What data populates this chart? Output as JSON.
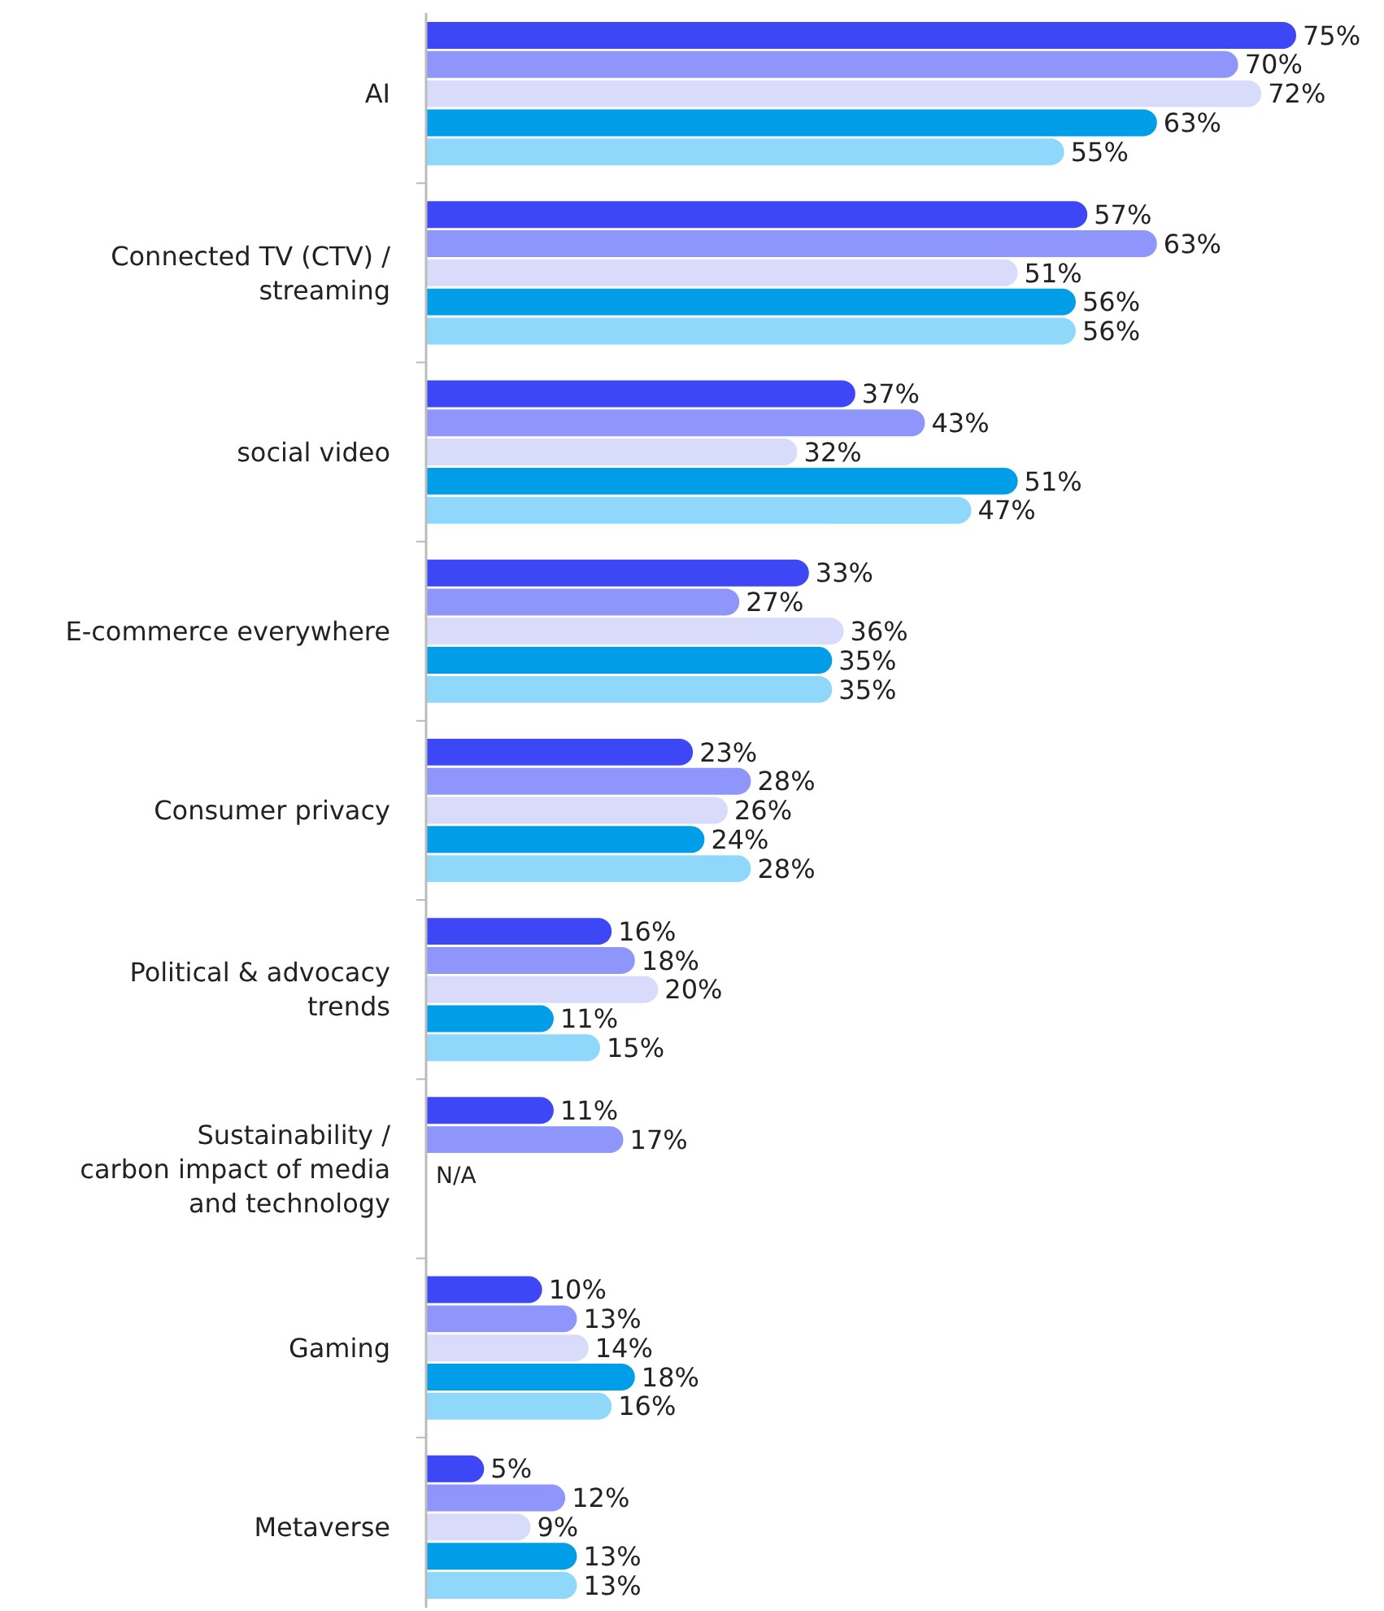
{
  "chart_data": {
    "type": "bar",
    "orientation": "horizontal",
    "categories": [
      "AI",
      "Connected TV (CTV) / streaming",
      "social video",
      "E-commerce everywhere",
      "Consumer privacy",
      "Political & advocacy trends",
      "Sustainability / carbon impact of media and technology",
      "Gaming",
      "Metaverse"
    ],
    "series": [
      {
        "color": "#3d47f5",
        "values": [
          75,
          57,
          37,
          33,
          23,
          16,
          11,
          10,
          5
        ],
        "value_labels": [
          "75%",
          "57%",
          "37%",
          "33%",
          "23%",
          "16%",
          "11%",
          "10%",
          "5%"
        ]
      },
      {
        "color": "#8f96fb",
        "values": [
          70,
          63,
          43,
          27,
          28,
          18,
          17,
          13,
          12
        ],
        "value_labels": [
          "70%",
          "63%",
          "43%",
          "27%",
          "28%",
          "18%",
          "17%",
          "13%",
          "12%"
        ]
      },
      {
        "color": "#d9dbfb",
        "values": [
          72,
          51,
          32,
          36,
          26,
          20,
          null,
          14,
          9
        ],
        "value_labels": [
          "72%",
          "51%",
          "32%",
          "36%",
          "26%",
          "20%",
          null,
          "14%",
          "9%"
        ]
      },
      {
        "color": "#009ee8",
        "values": [
          63,
          56,
          51,
          35,
          24,
          11,
          null,
          18,
          13
        ],
        "value_labels": [
          "63%",
          "56%",
          "51%",
          "35%",
          "24%",
          "11%",
          null,
          "18%",
          "13%"
        ]
      },
      {
        "color": "#8fd8fc",
        "values": [
          55,
          56,
          47,
          35,
          28,
          15,
          null,
          16,
          13
        ],
        "value_labels": [
          "55%",
          "56%",
          "47%",
          "35%",
          "28%",
          "15%",
          null,
          "16%",
          "13%"
        ]
      }
    ],
    "annotations": [
      "N/A"
    ],
    "tick_labels": "y"
  }
}
